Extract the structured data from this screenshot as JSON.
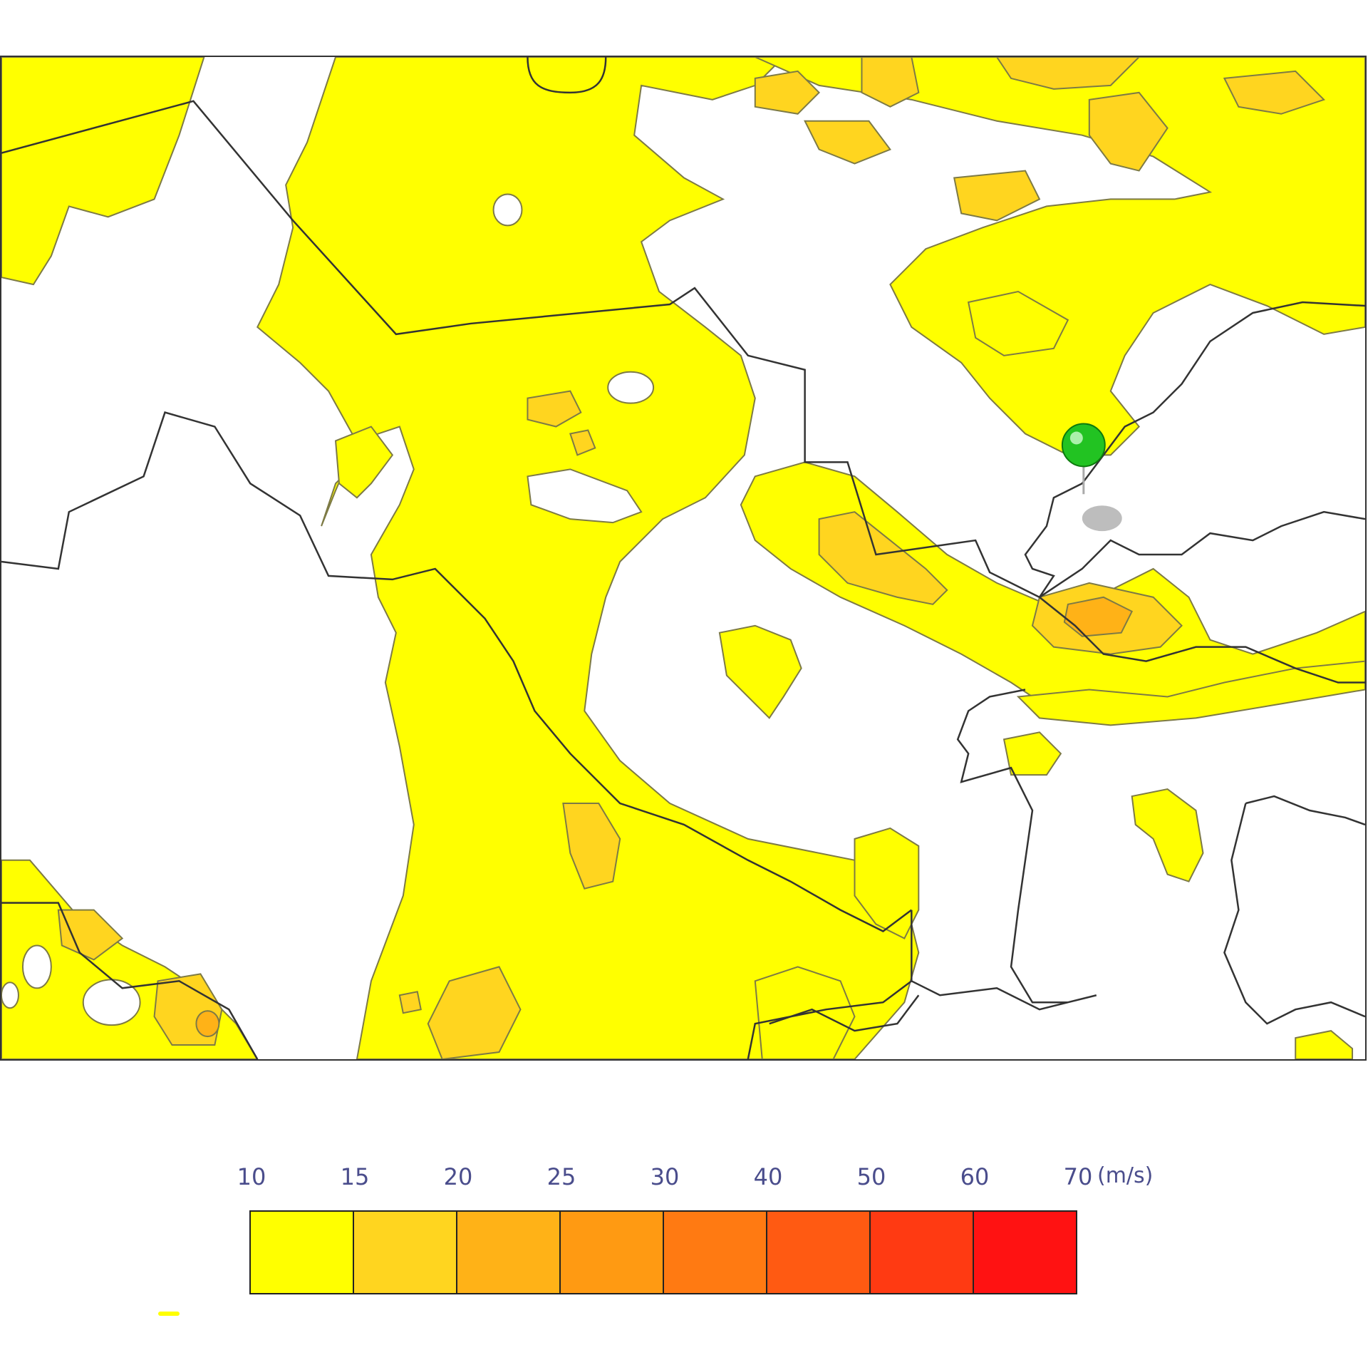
{
  "map": {
    "contour_levels_ms": [
      10,
      15,
      20,
      25,
      30,
      40,
      50,
      60,
      70
    ],
    "fill_colors": {
      "10-15": "#ffff00",
      "15-20": "#ffd51f",
      "20-25": "#ffb217",
      "25-30": "#ff9a12",
      "30-40": "#ff7a12",
      "40-50": "#ff5a12",
      "50-60": "#ff3a12",
      "60-70": "#ff1212"
    },
    "marker": {
      "color": "#1fb81f",
      "icon": "location-pin-icon"
    }
  },
  "legend": {
    "ticks": [
      "10",
      "15",
      "20",
      "25",
      "30",
      "40",
      "50",
      "60",
      "70"
    ],
    "units": "(m/s)",
    "swatches": [
      "#ffff00",
      "#ffd51f",
      "#ffb217",
      "#ff9a12",
      "#ff7a12",
      "#ff5a12",
      "#ff3a12",
      "#ff1212"
    ]
  }
}
